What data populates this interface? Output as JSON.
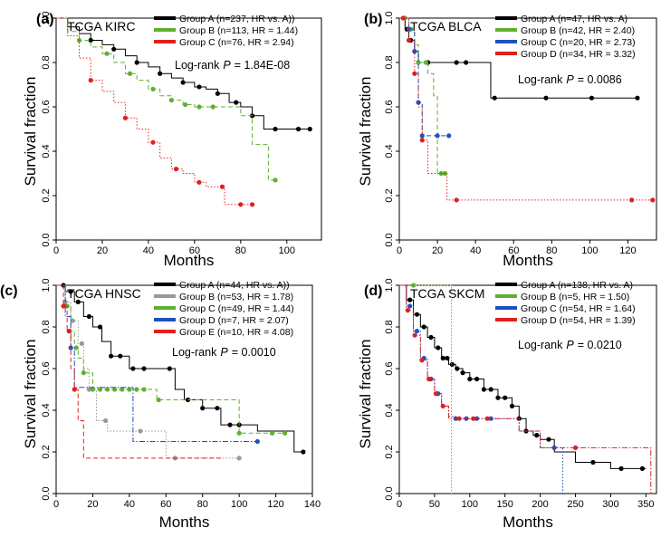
{
  "chart_data": [
    {
      "type": "line",
      "panel_label": "(a)",
      "title": "TCGA KIRC",
      "xlabel": "Months",
      "ylabel": "Survival fraction",
      "xlim": [
        0,
        115
      ],
      "ylim": [
        0,
        1
      ],
      "xticks": [
        0,
        20,
        40,
        60,
        80,
        100
      ],
      "yticks": [
        0.0,
        0.2,
        0.4,
        0.6,
        0.8,
        1.0
      ],
      "ytick_labels": [
        "0.0",
        "0.2",
        "0.4",
        "0.6",
        "0.8",
        "1.0"
      ],
      "pvalue_prefix": "Log-rank",
      "pvalue_symbol": "P",
      "pvalue_text": "= 1.84E-08",
      "legend_position": "top-right",
      "series": [
        {
          "name": "Group A (n=237, HR vs. A))",
          "color": "#000000",
          "line_style": "solid",
          "x": [
            0,
            5,
            10,
            15,
            20,
            25,
            30,
            35,
            40,
            45,
            50,
            55,
            60,
            65,
            70,
            75,
            80,
            85,
            90,
            95,
            100,
            105,
            110
          ],
          "y": [
            1.0,
            0.96,
            0.93,
            0.9,
            0.88,
            0.86,
            0.83,
            0.8,
            0.78,
            0.75,
            0.73,
            0.71,
            0.69,
            0.68,
            0.66,
            0.62,
            0.6,
            0.56,
            0.5,
            0.5,
            0.5,
            0.5,
            0.5
          ],
          "censored_x": [
            15,
            25,
            35,
            45,
            55,
            62,
            70,
            78,
            85,
            95,
            105,
            110
          ]
        },
        {
          "name": "Group B (n=113, HR = 1.44)",
          "color": "#5fb030",
          "line_style": "dashed",
          "x": [
            0,
            5,
            10,
            15,
            20,
            25,
            30,
            35,
            40,
            45,
            50,
            55,
            60,
            65,
            70,
            75,
            80,
            83,
            85,
            88,
            92,
            95
          ],
          "y": [
            1.0,
            0.94,
            0.9,
            0.87,
            0.84,
            0.8,
            0.75,
            0.72,
            0.68,
            0.65,
            0.63,
            0.61,
            0.6,
            0.6,
            0.6,
            0.6,
            0.56,
            0.56,
            0.43,
            0.43,
            0.27,
            0.27
          ],
          "censored_x": [
            10,
            22,
            32,
            42,
            50,
            56,
            62,
            68,
            95
          ]
        },
        {
          "name": "Group C (n=76, HR = 2.94)",
          "color": "#e02020",
          "line_style": "dotted",
          "x": [
            0,
            5,
            10,
            15,
            20,
            25,
            30,
            35,
            40,
            45,
            50,
            55,
            60,
            65,
            70,
            73,
            75,
            80,
            85
          ],
          "y": [
            1.0,
            0.92,
            0.82,
            0.72,
            0.67,
            0.62,
            0.55,
            0.5,
            0.44,
            0.37,
            0.32,
            0.3,
            0.26,
            0.24,
            0.24,
            0.16,
            0.16,
            0.16,
            0.16
          ],
          "censored_x": [
            15,
            30,
            42,
            52,
            62,
            72,
            80,
            85
          ]
        }
      ]
    },
    {
      "type": "line",
      "panel_label": "(b)",
      "title": "TCGA BLCA",
      "xlabel": "Months",
      "ylabel": "Survival fraction",
      "xlim": [
        0,
        135
      ],
      "ylim": [
        0,
        1
      ],
      "xticks": [
        0,
        20,
        40,
        60,
        80,
        100,
        120
      ],
      "yticks": [
        0.0,
        0.2,
        0.4,
        0.6,
        0.8,
        1.0
      ],
      "ytick_labels": [
        "0.0",
        "0.2",
        "0.4",
        "0.6",
        "0.8",
        "1.0"
      ],
      "pvalue_prefix": "Log-rank",
      "pvalue_symbol": "P",
      "pvalue_text": "= 0.0086",
      "legend_position": "top-right",
      "series": [
        {
          "name": "Group A (n=47, HR vs. A)",
          "color": "#000000",
          "line_style": "solid",
          "x": [
            0,
            3,
            5,
            8,
            10,
            30,
            48,
            50,
            75,
            100,
            125
          ],
          "y": [
            1.0,
            0.95,
            0.9,
            0.85,
            0.8,
            0.8,
            0.64,
            0.64,
            0.64,
            0.64,
            0.64
          ],
          "censored_x": [
            4,
            6,
            10,
            15,
            30,
            35,
            50,
            77,
            101,
            125
          ]
        },
        {
          "name": "Group B (n=42, HR = 2.40)",
          "color": "#5fb030",
          "line_style": "dashed",
          "x": [
            0,
            5,
            8,
            10,
            15,
            18,
            20,
            25
          ],
          "y": [
            1.0,
            0.95,
            0.88,
            0.8,
            0.75,
            0.65,
            0.3,
            0.3
          ],
          "censored_x": [
            3,
            6,
            10,
            14,
            22,
            24
          ]
        },
        {
          "name": "Group C (n=20, HR = 2.73)",
          "color": "#2050c0",
          "line_style": "dashed",
          "x": [
            0,
            5,
            8,
            10,
            12,
            15,
            20,
            26
          ],
          "y": [
            1.0,
            0.95,
            0.85,
            0.62,
            0.47,
            0.47,
            0.47,
            0.47
          ],
          "censored_x": [
            5,
            8,
            10,
            12,
            20,
            26
          ]
        },
        {
          "name": "Group D (n=34, HR = 3.32)",
          "color": "#e02020",
          "line_style": "dotted",
          "x": [
            0,
            5,
            8,
            10,
            12,
            15,
            20,
            25,
            30,
            60,
            90,
            120,
            133
          ],
          "y": [
            1.0,
            0.9,
            0.75,
            0.6,
            0.45,
            0.3,
            0.3,
            0.18,
            0.18,
            0.18,
            0.18,
            0.18,
            0.18
          ],
          "censored_x": [
            2,
            5,
            8,
            12,
            30,
            122,
            133
          ]
        }
      ]
    },
    {
      "type": "line",
      "panel_label": "(c)",
      "title": "TCGA HNSC",
      "xlabel": "Months",
      "ylabel": "Survival fraction",
      "xlim": [
        0,
        140
      ],
      "ylim": [
        0,
        1
      ],
      "xticks": [
        0,
        20,
        40,
        60,
        80,
        100,
        120,
        140
      ],
      "yticks": [
        0.0,
        0.2,
        0.4,
        0.6,
        0.8,
        1.0
      ],
      "ytick_labels": [
        "0.0",
        "0.2",
        "0.4",
        "0.6",
        "0.8",
        "1.0"
      ],
      "pvalue_prefix": "Log-rank",
      "pvalue_symbol": "P",
      "pvalue_text": "= 0.0010",
      "legend_position": "top-right",
      "series": [
        {
          "name": "Group A (n=44, HR vs. A))",
          "color": "#000000",
          "line_style": "solid",
          "x": [
            0,
            5,
            10,
            15,
            20,
            25,
            30,
            40,
            50,
            60,
            65,
            70,
            80,
            90,
            100,
            110,
            130,
            135
          ],
          "y": [
            1.0,
            0.97,
            0.92,
            0.85,
            0.8,
            0.73,
            0.66,
            0.6,
            0.6,
            0.6,
            0.5,
            0.45,
            0.41,
            0.33,
            0.33,
            0.3,
            0.2,
            0.2
          ],
          "censored_x": [
            4,
            8,
            12,
            18,
            24,
            30,
            35,
            42,
            48,
            62,
            72,
            80,
            88,
            95,
            100,
            135
          ]
        },
        {
          "name": "Group B (n=53, HR = 1.78)",
          "color": "#999999",
          "line_style": "dotted",
          "x": [
            0,
            5,
            8,
            12,
            15,
            18,
            22,
            28,
            60,
            100
          ],
          "y": [
            1.0,
            0.92,
            0.83,
            0.72,
            0.6,
            0.5,
            0.35,
            0.3,
            0.17,
            0.17
          ],
          "censored_x": [
            5,
            9,
            14,
            18,
            27,
            46,
            65,
            100
          ]
        },
        {
          "name": "Group C (n=49, HR = 1.44)",
          "color": "#5fb030",
          "line_style": "dashed",
          "x": [
            0,
            5,
            8,
            10,
            12,
            15,
            20,
            30,
            40,
            50,
            55,
            60,
            100,
            110,
            120,
            125
          ],
          "y": [
            1.0,
            0.9,
            0.78,
            0.7,
            0.65,
            0.58,
            0.5,
            0.5,
            0.5,
            0.5,
            0.45,
            0.45,
            0.29,
            0.29,
            0.29,
            0.29
          ],
          "censored_x": [
            6,
            11,
            15,
            20,
            24,
            28,
            32,
            36,
            40,
            44,
            48,
            56,
            100,
            118,
            125
          ]
        },
        {
          "name": "Group D (n=7, HR = 2.07)",
          "color": "#2050c0",
          "line_style": "dashdot",
          "x": [
            0,
            5,
            8,
            10,
            40,
            42,
            50,
            100,
            110,
            112
          ],
          "y": [
            1.0,
            0.85,
            0.7,
            0.51,
            0.51,
            0.25,
            0.25,
            0.25,
            0.25,
            0.25
          ],
          "censored_x": [
            8,
            110
          ]
        },
        {
          "name": "Group E (n=10, HR = 4.08)",
          "color": "#e02020",
          "line_style": "dashed",
          "x": [
            0,
            4,
            6,
            8,
            10,
            12,
            15,
            90
          ],
          "y": [
            1.0,
            0.9,
            0.78,
            0.6,
            0.5,
            0.35,
            0.17,
            0.17
          ],
          "censored_x": [
            4,
            7,
            10
          ]
        }
      ]
    },
    {
      "type": "line",
      "panel_label": "(d)",
      "title": "TCGA SKCM",
      "xlabel": "Months",
      "ylabel": "Survival fraction",
      "xlim": [
        0,
        365
      ],
      "ylim": [
        0,
        1
      ],
      "xticks": [
        0,
        50,
        100,
        150,
        200,
        250,
        300,
        350
      ],
      "yticks": [
        0.0,
        0.2,
        0.4,
        0.6,
        0.8,
        1.0
      ],
      "ytick_labels": [
        "0.0",
        "0.2",
        "0.4",
        "0.6",
        "0.8",
        "1.0"
      ],
      "pvalue_prefix": "Log-rank",
      "pvalue_symbol": "P",
      "pvalue_text": "= 0.0210",
      "legend_position": "top-right",
      "series": [
        {
          "name": "Group A (n=138, HR vs. A)",
          "color": "#000000",
          "line_style": "solid",
          "x": [
            0,
            10,
            20,
            30,
            40,
            50,
            60,
            70,
            80,
            90,
            100,
            120,
            140,
            160,
            170,
            180,
            190,
            200,
            220,
            250,
            300,
            340,
            350
          ],
          "y": [
            1.0,
            0.93,
            0.86,
            0.8,
            0.75,
            0.7,
            0.65,
            0.62,
            0.6,
            0.58,
            0.55,
            0.5,
            0.46,
            0.42,
            0.36,
            0.3,
            0.28,
            0.26,
            0.2,
            0.15,
            0.12,
            0.12,
            0.12
          ],
          "censored_x": [
            15,
            25,
            35,
            45,
            55,
            62,
            68,
            75,
            82,
            90,
            100,
            110,
            120,
            130,
            140,
            150,
            160,
            170,
            180,
            195,
            212,
            275,
            315,
            345
          ]
        },
        {
          "name": "Group B (n=5, HR = 1.50)",
          "color": "#5fb030",
          "line_style": "dotted",
          "x": [
            0,
            20,
            72,
            74
          ],
          "y": [
            1.0,
            1.0,
            1.0,
            0.0
          ],
          "censored_x": [
            20
          ]
        },
        {
          "name": "Group C (n=54, HR = 1.64)",
          "color": "#2050c0",
          "line_style": "dotted",
          "x": [
            0,
            10,
            20,
            30,
            40,
            50,
            60,
            70,
            80,
            100,
            150,
            170,
            200,
            220,
            230,
            232
          ],
          "y": [
            1.0,
            0.9,
            0.78,
            0.65,
            0.55,
            0.48,
            0.42,
            0.37,
            0.36,
            0.36,
            0.36,
            0.3,
            0.22,
            0.22,
            0.22,
            0.0
          ],
          "censored_x": [
            15,
            25,
            35,
            45,
            55,
            80,
            95,
            110,
            130,
            220
          ]
        },
        {
          "name": "Group D (n=54, HR = 1.39)",
          "color": "#e02020",
          "line_style": "dashdot",
          "x": [
            0,
            10,
            20,
            30,
            40,
            50,
            60,
            70,
            80,
            100,
            150,
            170,
            200,
            250,
            300,
            355,
            357
          ],
          "y": [
            1.0,
            0.88,
            0.76,
            0.64,
            0.55,
            0.48,
            0.42,
            0.36,
            0.36,
            0.36,
            0.36,
            0.3,
            0.22,
            0.22,
            0.22,
            0.22,
            0.0
          ],
          "censored_x": [
            12,
            22,
            32,
            42,
            52,
            62,
            85,
            105,
            125,
            250
          ]
        }
      ]
    }
  ]
}
